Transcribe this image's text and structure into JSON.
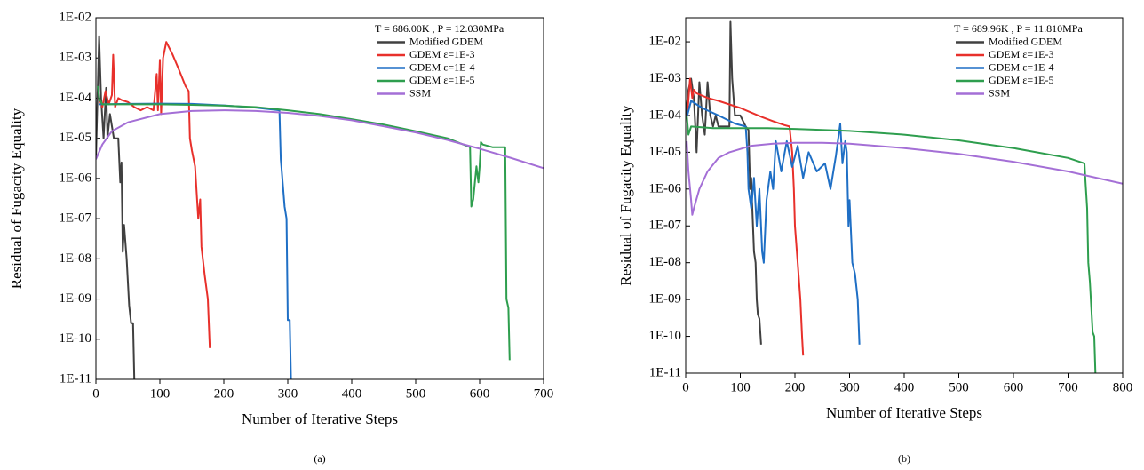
{
  "chart_data": [
    {
      "type": "line",
      "annotation": "T = 686.00K , P = 12.030MPa",
      "caption": "(a)",
      "xlabel": "Number of Iterative Steps",
      "ylabel": "Residual of Fugacity Equality",
      "xlim": [
        0,
        700
      ],
      "xticks": [
        0,
        100,
        200,
        300,
        400,
        500,
        600,
        700
      ],
      "ylim": [
        1e-11,
        0.01
      ],
      "log_y": true,
      "legend": "upper right",
      "yticks": [
        {
          "value": 0.01,
          "label": "1E-02"
        },
        {
          "value": 0.001,
          "label": "1E-03"
        },
        {
          "value": 0.0001,
          "label": "1E-04"
        },
        {
          "value": 1e-05,
          "label": "1E-05"
        },
        {
          "value": 1e-06,
          "label": "1E-06"
        },
        {
          "value": 1e-07,
          "label": "1E-07"
        },
        {
          "value": 1e-08,
          "label": "1E-08"
        },
        {
          "value": 1e-09,
          "label": "1E-09"
        },
        {
          "value": 1e-10,
          "label": "1E-10"
        },
        {
          "value": 1e-11,
          "label": "1E-11"
        }
      ],
      "series": [
        {
          "name": "Modified GDEM",
          "color": "#404040",
          "x": [
            0,
            5,
            8,
            12,
            16,
            18,
            22,
            28,
            35,
            38,
            40,
            42,
            44,
            48,
            52,
            55,
            58,
            60
          ],
          "values": [
            3e-06,
            0.0035,
            0.0001,
            1e-05,
            0.00018,
            1e-05,
            4e-05,
            1e-05,
            1e-05,
            8e-07,
            2.5e-06,
            1.5e-08,
            7e-08,
            1e-08,
            7e-10,
            2.5e-10,
            2.5e-10,
            1e-11
          ]
        },
        {
          "name": "GDEM ε=1E-3",
          "color": "#e8302b",
          "x": [
            5,
            10,
            15,
            20,
            25,
            27,
            30,
            35,
            40,
            50,
            60,
            70,
            80,
            90,
            95,
            97,
            100,
            102,
            105,
            110,
            120,
            130,
            140,
            145,
            147,
            150,
            155,
            160,
            163,
            165,
            170,
            175,
            178
          ],
          "values": [
            0.0001,
            6e-05,
            0.00015,
            7e-05,
            0.00012,
            0.0012,
            6e-05,
            0.0001,
            9e-05,
            8e-05,
            6e-05,
            5e-05,
            6e-05,
            5e-05,
            0.0004,
            5e-05,
            0.0009,
            4e-05,
            0.001,
            0.0025,
            0.0012,
            0.0005,
            0.0002,
            0.00015,
            1e-05,
            5e-06,
            2e-06,
            1e-07,
            3e-07,
            2e-08,
            4e-09,
            1e-09,
            6e-11
          ]
        },
        {
          "name": "GDEM ε=1E-4",
          "color": "#1f6fc5",
          "x": [
            5,
            50,
            100,
            150,
            200,
            250,
            287,
            289,
            290,
            295,
            298,
            300,
            303,
            305
          ],
          "values": [
            7e-05,
            7.2e-05,
            7.3e-05,
            7.2e-05,
            6.6e-05,
            5.8e-05,
            5e-05,
            3e-06,
            2e-06,
            2e-07,
            1e-07,
            3e-10,
            3e-10,
            1e-11
          ]
        },
        {
          "name": "GDEM ε=1E-5",
          "color": "#2e9e4e",
          "x": [
            3,
            5,
            10,
            50,
            100,
            150,
            200,
            250,
            300,
            350,
            400,
            450,
            500,
            550,
            585,
            587,
            590,
            595,
            598,
            600,
            602,
            605,
            620,
            640,
            642,
            645,
            647
          ],
          "values": [
            0.0002,
            0.0001,
            7e-05,
            7e-05,
            7e-05,
            6.8e-05,
            6.5e-05,
            6e-05,
            5e-05,
            4e-05,
            3e-05,
            2.2e-05,
            1.5e-05,
            1e-05,
            6e-06,
            2e-07,
            3e-07,
            2e-06,
            8e-07,
            2e-06,
            8e-06,
            7e-06,
            6e-06,
            6e-06,
            1e-09,
            6e-10,
            3e-11
          ]
        },
        {
          "name": "SSM",
          "color": "#a46fd6",
          "x": [
            0,
            10,
            25,
            50,
            100,
            150,
            200,
            250,
            300,
            350,
            400,
            450,
            500,
            550,
            600,
            650,
            700
          ],
          "values": [
            3e-06,
            7e-06,
            1.5e-05,
            2.5e-05,
            4e-05,
            4.8e-05,
            5e-05,
            4.8e-05,
            4.3e-05,
            3.6e-05,
            2.8e-05,
            2e-05,
            1.4e-05,
            9e-06,
            5.5e-06,
            3.2e-06,
            1.8e-06
          ]
        }
      ]
    },
    {
      "type": "line",
      "annotation": "T = 689.96K , P = 11.810MPa",
      "caption": "(b)",
      "xlabel": "Number of Iterative Steps",
      "ylabel": "Residual of Fugacity Equality",
      "xlim": [
        0,
        800
      ],
      "xticks": [
        0,
        100,
        200,
        300,
        400,
        500,
        600,
        700,
        800
      ],
      "ylim": [
        1e-11,
        0.045
      ],
      "log_y": true,
      "legend": "upper right",
      "yticks": [
        {
          "value": 0.01,
          "label": "1E-02"
        },
        {
          "value": 0.001,
          "label": "1E-03"
        },
        {
          "value": 0.0001,
          "label": "1E-04"
        },
        {
          "value": 1e-05,
          "label": "1E-05"
        },
        {
          "value": 1e-06,
          "label": "1E-06"
        },
        {
          "value": 1e-07,
          "label": "1E-07"
        },
        {
          "value": 1e-08,
          "label": "1E-08"
        },
        {
          "value": 1e-09,
          "label": "1E-09"
        },
        {
          "value": 1e-10,
          "label": "1E-10"
        },
        {
          "value": 1e-11,
          "label": "1E-11"
        }
      ],
      "series": [
        {
          "name": "Modified GDEM",
          "color": "#404040",
          "x": [
            0,
            5,
            10,
            15,
            20,
            25,
            30,
            35,
            40,
            45,
            50,
            55,
            60,
            70,
            80,
            82,
            85,
            90,
            100,
            110,
            115,
            118,
            120,
            122,
            125,
            128,
            130,
            132,
            135,
            138
          ],
          "values": [
            0.0001,
            0.0005,
            0.001,
            0.0003,
            1e-05,
            0.0008,
            0.0001,
            3e-05,
            0.0008,
            0.0001,
            5e-05,
            0.0001,
            5e-05,
            5e-05,
            5e-05,
            0.035,
            0.001,
            0.0001,
            0.0001,
            5e-05,
            4e-05,
            1e-06,
            2e-06,
            3e-07,
            2e-08,
            1e-08,
            1e-09,
            4e-10,
            3e-10,
            6e-11
          ]
        },
        {
          "name": "GDEM ε=1E-3",
          "color": "#e8302b",
          "x": [
            3,
            8,
            12,
            15,
            20,
            40,
            60,
            80,
            100,
            120,
            140,
            160,
            180,
            190,
            195,
            198,
            200,
            205,
            210,
            213,
            215
          ],
          "values": [
            0.0001,
            0.001,
            0.0003,
            0.0005,
            0.0004,
            0.0003,
            0.00025,
            0.0002,
            0.00016,
            0.00012,
            9e-05,
            7e-05,
            5.5e-05,
            5e-05,
            1e-05,
            1e-06,
            1e-07,
            1e-08,
            1e-09,
            1e-10,
            3e-11
          ]
        },
        {
          "name": "GDEM ε=1E-4",
          "color": "#1f6fc5",
          "x": [
            3,
            10,
            30,
            60,
            90,
            110,
            113,
            115,
            120,
            125,
            130,
            135,
            140,
            143,
            148,
            155,
            160,
            165,
            175,
            185,
            195,
            205,
            215,
            225,
            240,
            255,
            265,
            275,
            283,
            287,
            292,
            295,
            298,
            300,
            305,
            310,
            315,
            318
          ],
          "values": [
            0.0001,
            0.00025,
            0.00016,
            0.0001,
            6e-05,
            5e-05,
            1e-05,
            1e-06,
            3e-07,
            2e-06,
            1e-07,
            1e-06,
            2e-08,
            1e-08,
            5e-07,
            3e-06,
            1e-06,
            2e-05,
            3e-06,
            2e-05,
            4e-06,
            1.5e-05,
            2e-06,
            1e-05,
            3e-06,
            5e-06,
            1e-06,
            8e-06,
            6e-05,
            5e-06,
            2e-05,
            1e-05,
            1e-07,
            5e-07,
            1e-08,
            5e-09,
            1e-09,
            6e-11
          ]
        },
        {
          "name": "GDEM ε=1E-5",
          "color": "#2e9e4e",
          "x": [
            2,
            5,
            10,
            50,
            100,
            150,
            200,
            300,
            400,
            500,
            600,
            700,
            730,
            732,
            735,
            737,
            740,
            745,
            748,
            750
          ],
          "values": [
            0.0001,
            3e-05,
            5e-05,
            4.5e-05,
            4.5e-05,
            4.5e-05,
            4.3e-05,
            3.8e-05,
            3e-05,
            2.1e-05,
            1.3e-05,
            7e-06,
            5e-06,
            1.5e-06,
            3e-07,
            1e-08,
            3e-09,
            1.3e-10,
            1e-10,
            1e-11
          ]
        },
        {
          "name": "SSM",
          "color": "#a46fd6",
          "x": [
            2,
            5,
            10,
            12,
            15,
            25,
            40,
            60,
            80,
            120,
            160,
            200,
            250,
            300,
            400,
            500,
            600,
            700,
            800
          ],
          "values": [
            2e-05,
            3e-06,
            5e-07,
            2e-07,
            3e-07,
            1e-06,
            3e-06,
            7e-06,
            1e-05,
            1.5e-05,
            1.7e-05,
            1.8e-05,
            1.8e-05,
            1.7e-05,
            1.3e-05,
            9e-06,
            5.5e-06,
            3e-06,
            1.4e-06
          ]
        }
      ]
    }
  ]
}
